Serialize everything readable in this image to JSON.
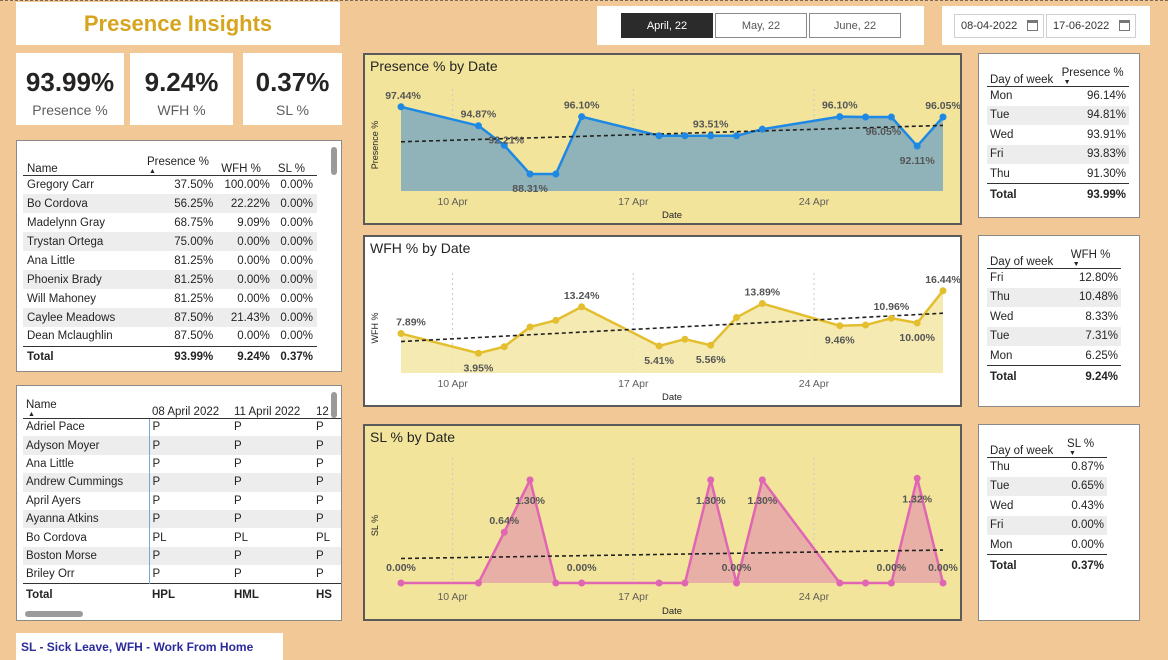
{
  "header": {
    "title": "Presence Insights"
  },
  "month_slicer": {
    "options": [
      "April, 22",
      "May, 22",
      "June, 22"
    ],
    "selected": "April, 22"
  },
  "date_range": {
    "start": "08-04-2022",
    "end": "17-06-2022"
  },
  "kpis": [
    {
      "value": "93.99%",
      "label": "Presence %"
    },
    {
      "value": "9.24%",
      "label": "WFH %"
    },
    {
      "value": "0.37%",
      "label": "SL %"
    }
  ],
  "employee_table": {
    "headers": [
      "Name",
      "Presence %",
      "WFH %",
      "SL %"
    ],
    "rows": [
      [
        "Gregory Carr",
        "37.50%",
        "100.00%",
        "0.00%"
      ],
      [
        "Bo Cordova",
        "56.25%",
        "22.22%",
        "0.00%"
      ],
      [
        "Madelynn Gray",
        "68.75%",
        "9.09%",
        "0.00%"
      ],
      [
        "Trystan Ortega",
        "75.00%",
        "0.00%",
        "0.00%"
      ],
      [
        "Ana Little",
        "81.25%",
        "0.00%",
        "0.00%"
      ],
      [
        "Phoenix Brady",
        "81.25%",
        "0.00%",
        "0.00%"
      ],
      [
        "Will Mahoney",
        "81.25%",
        "0.00%",
        "0.00%"
      ],
      [
        "Caylee Meadows",
        "87.50%",
        "21.43%",
        "0.00%"
      ],
      [
        "Dean Mclaughlin",
        "87.50%",
        "0.00%",
        "0.00%"
      ]
    ],
    "total": [
      "Total",
      "93.99%",
      "9.24%",
      "0.37%"
    ]
  },
  "attendance_matrix": {
    "headers": [
      "Name",
      "08 April 2022",
      "11 April 2022",
      "12"
    ],
    "rows": [
      [
        "Adriel Pace",
        "P",
        "P",
        "P"
      ],
      [
        "Adyson Moyer",
        "P",
        "P",
        "P"
      ],
      [
        "Ana Little",
        "P",
        "P",
        "P"
      ],
      [
        "Andrew Cummings",
        "P",
        "P",
        "P"
      ],
      [
        "April Ayers",
        "P",
        "P",
        "P"
      ],
      [
        "Ayanna Atkins",
        "P",
        "P",
        "P"
      ],
      [
        "Bo Cordova",
        "PL",
        "PL",
        "PL"
      ],
      [
        "Boston Morse",
        "P",
        "P",
        "P"
      ],
      [
        "Briley Orr",
        "P",
        "P",
        "P"
      ]
    ],
    "total": [
      "Total",
      "HPL",
      "HML",
      "HS"
    ]
  },
  "legend_note": "SL - Sick Leave, WFH - Work From Home",
  "dow_presence": {
    "headers": [
      "Day of week",
      "Presence %"
    ],
    "rows": [
      [
        "Mon",
        "96.14%"
      ],
      [
        "Tue",
        "94.81%"
      ],
      [
        "Wed",
        "93.91%"
      ],
      [
        "Fri",
        "93.83%"
      ],
      [
        "Thu",
        "91.30%"
      ]
    ],
    "total": [
      "Total",
      "93.99%"
    ]
  },
  "dow_wfh": {
    "headers": [
      "Day of week",
      "WFH %"
    ],
    "rows": [
      [
        "Fri",
        "12.80%"
      ],
      [
        "Thu",
        "10.48%"
      ],
      [
        "Wed",
        "8.33%"
      ],
      [
        "Tue",
        "7.31%"
      ],
      [
        "Mon",
        "6.25%"
      ]
    ],
    "total": [
      "Total",
      "9.24%"
    ]
  },
  "dow_sl": {
    "headers": [
      "Day of week",
      "SL %"
    ],
    "rows": [
      [
        "Thu",
        "0.87%"
      ],
      [
        "Tue",
        "0.65%"
      ],
      [
        "Wed",
        "0.43%"
      ],
      [
        "Fri",
        "0.00%"
      ],
      [
        "Mon",
        "0.00%"
      ]
    ],
    "total": [
      "Total",
      "0.37%"
    ]
  },
  "chart_data": [
    {
      "type": "area",
      "title": "Presence % by Date",
      "xlabel": "Date",
      "ylabel": "Presence %",
      "x": [
        "2022-04-08",
        "2022-04-11",
        "2022-04-12",
        "2022-04-13",
        "2022-04-14",
        "2022-04-15",
        "2022-04-18",
        "2022-04-19",
        "2022-04-20",
        "2022-04-21",
        "2022-04-22",
        "2022-04-25",
        "2022-04-26",
        "2022-04-27",
        "2022-04-28",
        "2022-04-29"
      ],
      "x_ticks": [
        "10 Apr",
        "17 Apr",
        "24 Apr"
      ],
      "ylim": [
        86,
        98.5
      ],
      "series": [
        {
          "values": [
            97.44,
            94.87,
            92.21,
            88.31,
            88.31,
            96.1,
            93.51,
            93.51,
            93.51,
            93.51,
            94.4,
            96.1,
            96.05,
            96.05,
            92.11,
            96.05
          ]
        }
      ],
      "data_labels": [
        {
          "index": 0,
          "text": "97.44%"
        },
        {
          "index": 1,
          "text": "94.87%"
        },
        {
          "index": 2,
          "text": "92.21%"
        },
        {
          "index": 3,
          "text": "88.31%"
        },
        {
          "index": 5,
          "text": "96.10%"
        },
        {
          "index": 8,
          "text": "93.51%"
        },
        {
          "index": 11,
          "text": "96.10%"
        },
        {
          "index": 13,
          "text": "96.05%"
        },
        {
          "index": 14,
          "text": "92.11%"
        },
        {
          "index": 15,
          "text": "96.05%"
        }
      ],
      "trend_line": true,
      "colors": {
        "line": "#1E88E5",
        "area": "#8FB3B8",
        "trend": "#222222",
        "background": "#F2E49B"
      }
    },
    {
      "type": "area",
      "title": "WFH % by Date",
      "xlabel": "Date",
      "ylabel": "WFH %",
      "x": [
        "2022-04-08",
        "2022-04-11",
        "2022-04-12",
        "2022-04-13",
        "2022-04-14",
        "2022-04-15",
        "2022-04-18",
        "2022-04-19",
        "2022-04-20",
        "2022-04-21",
        "2022-04-22",
        "2022-04-25",
        "2022-04-26",
        "2022-04-27",
        "2022-04-28",
        "2022-04-29"
      ],
      "x_ticks": [
        "10 Apr",
        "17 Apr",
        "24 Apr"
      ],
      "ylim": [
        0,
        18
      ],
      "series": [
        {
          "values": [
            7.89,
            3.95,
            5.26,
            9.21,
            10.53,
            13.24,
            5.41,
            6.76,
            5.56,
            11.11,
            13.89,
            9.46,
            9.59,
            10.96,
            10.0,
            16.44
          ]
        }
      ],
      "data_labels": [
        {
          "index": 0,
          "text": "7.89%"
        },
        {
          "index": 1,
          "text": "3.95%"
        },
        {
          "index": 5,
          "text": "13.24%"
        },
        {
          "index": 6,
          "text": "5.41%"
        },
        {
          "index": 8,
          "text": "5.56%"
        },
        {
          "index": 10,
          "text": "13.89%"
        },
        {
          "index": 11,
          "text": "9.46%"
        },
        {
          "index": 13,
          "text": "10.96%"
        },
        {
          "index": 14,
          "text": "10.00%"
        },
        {
          "index": 15,
          "text": "16.44%"
        }
      ],
      "trend_line": true,
      "colors": {
        "line": "#E3BE2E",
        "area": "#F4E6A6",
        "trend": "#222222",
        "background": "#ffffff"
      }
    },
    {
      "type": "area",
      "title": "SL % by Date",
      "xlabel": "Date",
      "ylabel": "SL %",
      "x": [
        "2022-04-08",
        "2022-04-11",
        "2022-04-12",
        "2022-04-13",
        "2022-04-14",
        "2022-04-15",
        "2022-04-18",
        "2022-04-19",
        "2022-04-20",
        "2022-04-21",
        "2022-04-22",
        "2022-04-25",
        "2022-04-26",
        "2022-04-27",
        "2022-04-28",
        "2022-04-29"
      ],
      "x_ticks": [
        "10 Apr",
        "17 Apr",
        "24 Apr"
      ],
      "ylim": [
        0,
        1.45
      ],
      "series": [
        {
          "values": [
            0,
            0,
            0.64,
            1.3,
            0,
            0,
            0,
            0,
            1.3,
            0,
            1.3,
            0,
            0,
            0,
            1.32,
            0
          ]
        }
      ],
      "data_labels": [
        {
          "index": 0,
          "text": "0.00%"
        },
        {
          "index": 2,
          "text": "0.64%"
        },
        {
          "index": 3,
          "text": "1.30%"
        },
        {
          "index": 5,
          "text": "0.00%"
        },
        {
          "index": 8,
          "text": "1.30%"
        },
        {
          "index": 9,
          "text": "0.00%"
        },
        {
          "index": 10,
          "text": "1.30%"
        },
        {
          "index": 13,
          "text": "0.00%"
        },
        {
          "index": 14,
          "text": "1.32%"
        },
        {
          "index": 15,
          "text": "0.00%"
        }
      ],
      "trend_line": true,
      "colors": {
        "line": "#E066B3",
        "area": "#E7AFA6",
        "trend": "#222222",
        "background": "#F2E49B"
      }
    }
  ]
}
